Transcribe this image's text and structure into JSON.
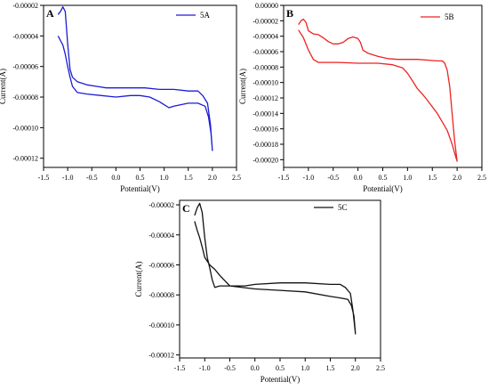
{
  "chart_data": [
    {
      "type": "line",
      "panel": "A",
      "xlabel": "Potential(V)",
      "ylabel": "Current(A)",
      "xlim": [
        -1.5,
        2.5
      ],
      "ylim": [
        -0.000126,
        -2e-05
      ],
      "xticks": [
        -1.5,
        -1.0,
        -0.5,
        0.0,
        0.5,
        1.0,
        1.5,
        2.0,
        2.5
      ],
      "xtick_labels": [
        "-1.5",
        "-1.0",
        "-0.5",
        "0.0",
        "0.5",
        "1.0",
        "1.5",
        "2.0",
        "2.5"
      ],
      "yticks": [
        -2e-05,
        -4e-05,
        -6e-05,
        -8e-05,
        -0.0001,
        -0.00012
      ],
      "ytick_labels": [
        "-0.00002",
        "-0.00004",
        "-0.00006",
        "-0.00008",
        "-0.00010",
        "-0.00012"
      ],
      "legend": "top-right",
      "color": "#1c1cd6",
      "series": [
        {
          "name": "5A",
          "x": [
            -1.2,
            -1.15,
            -1.1,
            -1.05,
            -1.0,
            -0.95,
            -0.9,
            -0.8,
            -0.6,
            -0.4,
            -0.2,
            0.0,
            0.3,
            0.6,
            0.9,
            1.2,
            1.5,
            1.7,
            1.8,
            1.9,
            1.96,
            2.0,
            1.97,
            1.92,
            1.85,
            1.7,
            1.5,
            1.2,
            1.1,
            1.0,
            0.9,
            0.7,
            0.5,
            0.3,
            0.0,
            -0.3,
            -0.6,
            -0.8,
            -0.9,
            -0.95,
            -1.0,
            -1.05,
            -1.1,
            -1.15,
            -1.2
          ],
          "y": [
            -2.6e-05,
            -2.4e-05,
            -2.1e-05,
            -2.4e-05,
            -4.5e-05,
            -6.2e-05,
            -6.7e-05,
            -7e-05,
            -7.2e-05,
            -7.3e-05,
            -7.4e-05,
            -7.4e-05,
            -7.4e-05,
            -7.4e-05,
            -7.5e-05,
            -7.5e-05,
            -7.6e-05,
            -7.6e-05,
            -7.9e-05,
            -8.4e-05,
            -9.8e-05,
            -0.000115,
            -0.000103,
            -9.3e-05,
            -8.6e-05,
            -8.4e-05,
            -8.4e-05,
            -8.6e-05,
            -8.7e-05,
            -8.5e-05,
            -8.3e-05,
            -8e-05,
            -7.9e-05,
            -7.9e-05,
            -8e-05,
            -7.9e-05,
            -7.8e-05,
            -7.7e-05,
            -7.3e-05,
            -6.7e-05,
            -6e-05,
            -5.2e-05,
            -4.6e-05,
            -4.3e-05,
            -4e-05
          ]
        }
      ]
    },
    {
      "type": "line",
      "panel": "B",
      "xlabel": "Potential(V)",
      "ylabel": "Current(A)",
      "xlim": [
        -1.5,
        2.5
      ],
      "ylim": [
        -0.00021,
        0
      ],
      "xticks": [
        -1.5,
        -1.0,
        -0.5,
        0.0,
        0.5,
        1.0,
        1.5,
        2.0,
        2.5
      ],
      "xtick_labels": [
        "-1.5",
        "-1.0",
        "-0.5",
        "0.0",
        "0.5",
        "1.0",
        "1.5",
        "2.0",
        "2.5"
      ],
      "yticks": [
        0,
        -2e-05,
        -4e-05,
        -6e-05,
        -8e-05,
        -0.0001,
        -0.00012,
        -0.00014,
        -0.00016,
        -0.00018,
        -0.0002
      ],
      "ytick_labels": [
        "0.00000",
        "-0.00002",
        "-0.00004",
        "-0.00006",
        "-0.00008",
        "-0.00010",
        "-0.00012",
        "-0.00014",
        "-0.00016",
        "-0.00018",
        "-0.00020"
      ],
      "legend": "top-right",
      "color": "#ee2222",
      "series": [
        {
          "name": "5B",
          "x": [
            -1.2,
            -1.15,
            -1.1,
            -1.05,
            -1.0,
            -0.9,
            -0.8,
            -0.7,
            -0.6,
            -0.5,
            -0.4,
            -0.3,
            -0.2,
            -0.1,
            0.0,
            0.05,
            0.1,
            0.2,
            0.4,
            0.6,
            0.8,
            1.0,
            1.2,
            1.4,
            1.6,
            1.7,
            1.75,
            1.8,
            1.85,
            1.9,
            1.95,
            2.0,
            1.98,
            1.9,
            1.8,
            1.6,
            1.4,
            1.3,
            1.2,
            1.1,
            1.0,
            0.9,
            0.7,
            0.4,
            0.0,
            -0.4,
            -0.8,
            -0.9,
            -1.0,
            -1.1,
            -1.2
          ],
          "y": [
            -2.5e-05,
            -2e-05,
            -1.8e-05,
            -2.2e-05,
            -3.3e-05,
            -3.7e-05,
            -3.8e-05,
            -4.2e-05,
            -4.7e-05,
            -5e-05,
            -5e-05,
            -4.8e-05,
            -4.3e-05,
            -4.1e-05,
            -4.3e-05,
            -4.8e-05,
            -5.8e-05,
            -6.2e-05,
            -6.6e-05,
            -6.9e-05,
            -7e-05,
            -7e-05,
            -7e-05,
            -7.1e-05,
            -7.2e-05,
            -7.2e-05,
            -7.5e-05,
            -8.4e-05,
            -0.000105,
            -0.00014,
            -0.000175,
            -0.000202,
            -0.000198,
            -0.00018,
            -0.000162,
            -0.00014,
            -0.000123,
            -0.000115,
            -0.000108,
            -9.8e-05,
            -8.8e-05,
            -8.1e-05,
            -7.7e-05,
            -7.5e-05,
            -7.5e-05,
            -7.4e-05,
            -7.4e-05,
            -7e-05,
            -5.8e-05,
            -4.2e-05,
            -3.2e-05
          ]
        }
      ]
    },
    {
      "type": "line",
      "panel": "C",
      "xlabel": "Potential(V)",
      "ylabel": "Current(A)",
      "xlim": [
        -1.5,
        2.5
      ],
      "ylim": [
        -0.000122,
        -1.7e-05
      ],
      "xticks": [
        -1.5,
        -1.0,
        -0.5,
        0.0,
        0.5,
        1.0,
        1.5,
        2.0,
        2.5
      ],
      "xtick_labels": [
        "-1.5",
        "-1.0",
        "-0.5",
        "0.0",
        "0.5",
        "1.0",
        "1.5",
        "2.0",
        "2.5"
      ],
      "yticks": [
        -2e-05,
        -4e-05,
        -6e-05,
        -8e-05,
        -0.0001,
        -0.00012
      ],
      "ytick_labels": [
        "-0.00002",
        "-0.00004",
        "-0.00006",
        "-0.00008",
        "-0.00010",
        "-0.00012"
      ],
      "legend": "top-right",
      "color": "#111111",
      "series": [
        {
          "name": "5C",
          "x": [
            -1.2,
            -1.15,
            -1.1,
            -1.05,
            -1.0,
            -0.95,
            -0.9,
            -0.85,
            -0.8,
            -0.7,
            -0.5,
            -0.2,
            0.0,
            0.5,
            1.0,
            1.5,
            1.7,
            1.8,
            1.9,
            1.95,
            2.0,
            1.97,
            1.92,
            1.85,
            1.7,
            1.5,
            1.0,
            0.5,
            0.0,
            -0.5,
            -0.7,
            -0.8,
            -0.9,
            -1.0,
            -1.05,
            -1.1,
            -1.15,
            -1.2
          ],
          "y": [
            -2.7e-05,
            -2.2e-05,
            -1.9e-05,
            -2.5e-05,
            -4.2e-05,
            -5.5e-05,
            -6.2e-05,
            -7e-05,
            -7.5e-05,
            -7.4e-05,
            -7.4e-05,
            -7.4e-05,
            -7.3e-05,
            -7.2e-05,
            -7.2e-05,
            -7.3e-05,
            -7.3e-05,
            -7.5e-05,
            -7.9e-05,
            -9e-05,
            -0.000106,
            -9.4e-05,
            -8.7e-05,
            -8.3e-05,
            -8.2e-05,
            -8.1e-05,
            -7.8e-05,
            -7.7e-05,
            -7.6e-05,
            -7.4e-05,
            -6.7e-05,
            -6.3e-05,
            -6e-05,
            -5.5e-05,
            -4.8e-05,
            -4.2e-05,
            -3.7e-05,
            -3.1e-05
          ]
        }
      ]
    }
  ]
}
